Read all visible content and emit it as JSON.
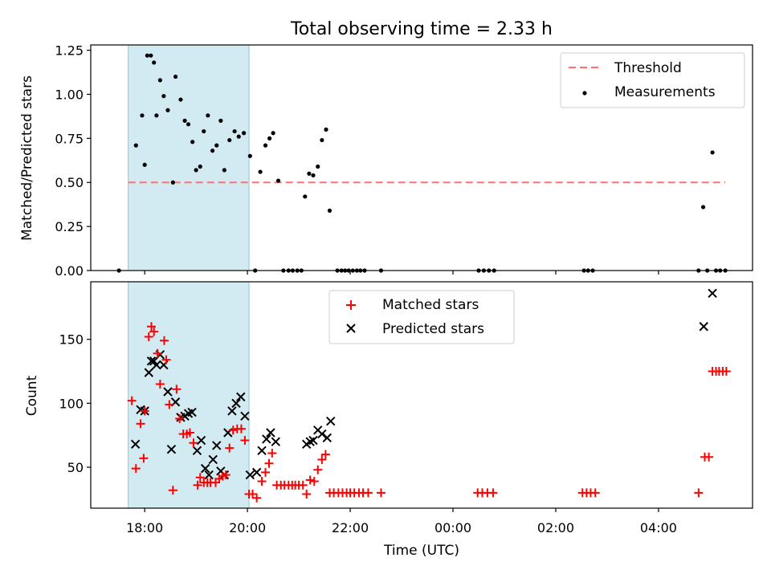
{
  "title": "Total observing time = 2.33 h",
  "colors": {
    "shade": "#add8e6",
    "threshold": "#ff7070",
    "matched": "#ff0000",
    "predicted": "#000000",
    "measurement": "#000000"
  },
  "chart_data": [
    {
      "type": "scatter",
      "ylabel": "Matched/Predicted stars",
      "xlabel": "",
      "ylim": [
        0,
        1.28
      ],
      "yticks": [
        "0.00",
        "0.25",
        "0.50",
        "0.75",
        "1.00",
        "1.25"
      ],
      "ytick_values": [
        0,
        0.25,
        0.5,
        0.75,
        1.0,
        1.25
      ],
      "shaded_span_hours": [
        17.68,
        20.03
      ],
      "legend": {
        "position": "top-right",
        "entries": [
          "Threshold",
          "Measurements"
        ]
      },
      "threshold": {
        "name": "Threshold",
        "value": 0.5,
        "x_range_hours": [
          17.68,
          29.3
        ]
      },
      "series": [
        {
          "name": "Measurements",
          "points": [
            [
              17.5,
              0.0
            ],
            [
              17.83,
              0.71
            ],
            [
              17.95,
              0.88
            ],
            [
              18.0,
              0.6
            ],
            [
              18.05,
              1.22
            ],
            [
              18.12,
              1.22
            ],
            [
              18.18,
              1.18
            ],
            [
              18.23,
              0.88
            ],
            [
              18.3,
              1.08
            ],
            [
              18.37,
              0.99
            ],
            [
              18.45,
              0.91
            ],
            [
              18.55,
              0.5
            ],
            [
              18.6,
              1.1
            ],
            [
              18.7,
              0.97
            ],
            [
              18.78,
              0.85
            ],
            [
              18.85,
              0.83
            ],
            [
              18.93,
              0.73
            ],
            [
              19.0,
              0.57
            ],
            [
              19.08,
              0.59
            ],
            [
              19.15,
              0.79
            ],
            [
              19.23,
              0.88
            ],
            [
              19.32,
              0.68
            ],
            [
              19.4,
              0.71
            ],
            [
              19.48,
              0.85
            ],
            [
              19.55,
              0.57
            ],
            [
              19.65,
              0.74
            ],
            [
              19.75,
              0.79
            ],
            [
              19.83,
              0.76
            ],
            [
              19.93,
              0.78
            ],
            [
              20.05,
              0.65
            ],
            [
              20.15,
              0.0
            ],
            [
              20.25,
              0.56
            ],
            [
              20.35,
              0.71
            ],
            [
              20.43,
              0.75
            ],
            [
              20.5,
              0.78
            ],
            [
              20.6,
              0.51
            ],
            [
              20.7,
              0.0
            ],
            [
              20.8,
              0.0
            ],
            [
              20.88,
              0.0
            ],
            [
              20.97,
              0.0
            ],
            [
              21.05,
              0.0
            ],
            [
              21.12,
              0.42
            ],
            [
              21.2,
              0.55
            ],
            [
              21.28,
              0.54
            ],
            [
              21.37,
              0.59
            ],
            [
              21.45,
              0.74
            ],
            [
              21.53,
              0.8
            ],
            [
              21.6,
              0.34
            ],
            [
              21.75,
              0.0
            ],
            [
              21.83,
              0.0
            ],
            [
              21.9,
              0.0
            ],
            [
              21.97,
              0.0
            ],
            [
              22.05,
              0.0
            ],
            [
              22.13,
              0.0
            ],
            [
              22.2,
              0.0
            ],
            [
              22.28,
              0.0
            ],
            [
              22.6,
              0.0
            ],
            [
              24.5,
              0.0
            ],
            [
              24.6,
              0.0
            ],
            [
              24.7,
              0.0
            ],
            [
              24.8,
              0.0
            ],
            [
              26.55,
              0.0
            ],
            [
              26.63,
              0.0
            ],
            [
              26.72,
              0.0
            ],
            [
              28.78,
              0.0
            ],
            [
              28.87,
              0.36
            ],
            [
              28.95,
              0.0
            ],
            [
              29.05,
              0.67
            ],
            [
              29.12,
              0.0
            ],
            [
              29.2,
              0.0
            ],
            [
              29.3,
              0.0
            ]
          ]
        }
      ]
    },
    {
      "type": "scatter",
      "xlabel": "Time (UTC)",
      "ylabel": "Count",
      "ylim": [
        18,
        195
      ],
      "yticks": [
        "50",
        "100",
        "150"
      ],
      "ytick_values": [
        50,
        100,
        150
      ],
      "xlim_hours": [
        16.95,
        29.83
      ],
      "xticks": [
        "18:00",
        "20:00",
        "22:00",
        "00:00",
        "02:00",
        "04:00"
      ],
      "xtick_hours": [
        18,
        20,
        22,
        24,
        26,
        28
      ],
      "shaded_span_hours": [
        17.68,
        20.03
      ],
      "legend": {
        "position": "top-center",
        "entries": [
          "Matched stars",
          "Predicted stars"
        ]
      },
      "series": [
        {
          "name": "Matched stars",
          "marker": "+",
          "points": [
            [
              17.75,
              102
            ],
            [
              17.83,
              49
            ],
            [
              17.92,
              84
            ],
            [
              17.98,
              57
            ],
            [
              18.0,
              94
            ],
            [
              18.08,
              152
            ],
            [
              18.13,
              160
            ],
            [
              18.18,
              156
            ],
            [
              18.25,
              139
            ],
            [
              18.3,
              115
            ],
            [
              18.38,
              149
            ],
            [
              18.42,
              134
            ],
            [
              18.48,
              99
            ],
            [
              18.55,
              32
            ],
            [
              18.62,
              111
            ],
            [
              18.68,
              88
            ],
            [
              18.75,
              76
            ],
            [
              18.82,
              76
            ],
            [
              18.88,
              77
            ],
            [
              18.95,
              69
            ],
            [
              19.03,
              36
            ],
            [
              19.08,
              42
            ],
            [
              19.15,
              38
            ],
            [
              19.22,
              38
            ],
            [
              19.28,
              38
            ],
            [
              19.38,
              38
            ],
            [
              19.45,
              41
            ],
            [
              19.52,
              43
            ],
            [
              19.58,
              44
            ],
            [
              19.65,
              65
            ],
            [
              19.72,
              79
            ],
            [
              19.8,
              80
            ],
            [
              19.88,
              80
            ],
            [
              19.95,
              71
            ],
            [
              20.03,
              29
            ],
            [
              20.1,
              29
            ],
            [
              20.18,
              26
            ],
            [
              20.28,
              39
            ],
            [
              20.35,
              46
            ],
            [
              20.42,
              53
            ],
            [
              20.48,
              61
            ],
            [
              20.57,
              36
            ],
            [
              20.65,
              36
            ],
            [
              20.72,
              36
            ],
            [
              20.8,
              36
            ],
            [
              20.87,
              36
            ],
            [
              20.93,
              36
            ],
            [
              21.0,
              36
            ],
            [
              21.08,
              36
            ],
            [
              21.15,
              29
            ],
            [
              21.22,
              40
            ],
            [
              21.3,
              39
            ],
            [
              21.37,
              48
            ],
            [
              21.45,
              56
            ],
            [
              21.52,
              60
            ],
            [
              21.6,
              30
            ],
            [
              21.68,
              30
            ],
            [
              21.77,
              30
            ],
            [
              21.85,
              30
            ],
            [
              21.93,
              30
            ],
            [
              22.0,
              30
            ],
            [
              22.08,
              30
            ],
            [
              22.17,
              30
            ],
            [
              22.25,
              30
            ],
            [
              22.35,
              30
            ],
            [
              22.6,
              30
            ],
            [
              24.48,
              30
            ],
            [
              24.57,
              30
            ],
            [
              24.67,
              30
            ],
            [
              24.78,
              30
            ],
            [
              26.52,
              30
            ],
            [
              26.6,
              30
            ],
            [
              26.68,
              30
            ],
            [
              26.77,
              30
            ],
            [
              28.78,
              30
            ],
            [
              28.9,
              58
            ],
            [
              28.98,
              58
            ],
            [
              29.05,
              125
            ],
            [
              29.12,
              125
            ],
            [
              29.18,
              125
            ],
            [
              29.25,
              125
            ],
            [
              29.32,
              125
            ]
          ]
        },
        {
          "name": "Predicted stars",
          "marker": "x",
          "points": [
            [
              17.82,
              68
            ],
            [
              17.92,
              95
            ],
            [
              18.0,
              94
            ],
            [
              18.08,
              124
            ],
            [
              18.13,
              133
            ],
            [
              18.18,
              133
            ],
            [
              18.23,
              130
            ],
            [
              18.3,
              138
            ],
            [
              18.37,
              130
            ],
            [
              18.45,
              109
            ],
            [
              18.52,
              64
            ],
            [
              18.6,
              101
            ],
            [
              18.7,
              89
            ],
            [
              18.78,
              90
            ],
            [
              18.85,
              92
            ],
            [
              18.92,
              93
            ],
            [
              19.02,
              63
            ],
            [
              19.1,
              71
            ],
            [
              19.18,
              49
            ],
            [
              19.25,
              44
            ],
            [
              19.33,
              56
            ],
            [
              19.4,
              67
            ],
            [
              19.48,
              47
            ],
            [
              19.55,
              44
            ],
            [
              19.62,
              77
            ],
            [
              19.7,
              94
            ],
            [
              19.78,
              100
            ],
            [
              19.87,
              105
            ],
            [
              19.95,
              90
            ],
            [
              20.05,
              44
            ],
            [
              20.18,
              46
            ],
            [
              20.28,
              63
            ],
            [
              20.37,
              72
            ],
            [
              20.45,
              77
            ],
            [
              20.55,
              70
            ],
            [
              21.15,
              68
            ],
            [
              21.22,
              70
            ],
            [
              21.28,
              71
            ],
            [
              21.37,
              79
            ],
            [
              21.45,
              76
            ],
            [
              21.55,
              73
            ],
            [
              21.62,
              86
            ],
            [
              28.88,
              160
            ],
            [
              29.05,
              186
            ]
          ]
        }
      ]
    }
  ]
}
